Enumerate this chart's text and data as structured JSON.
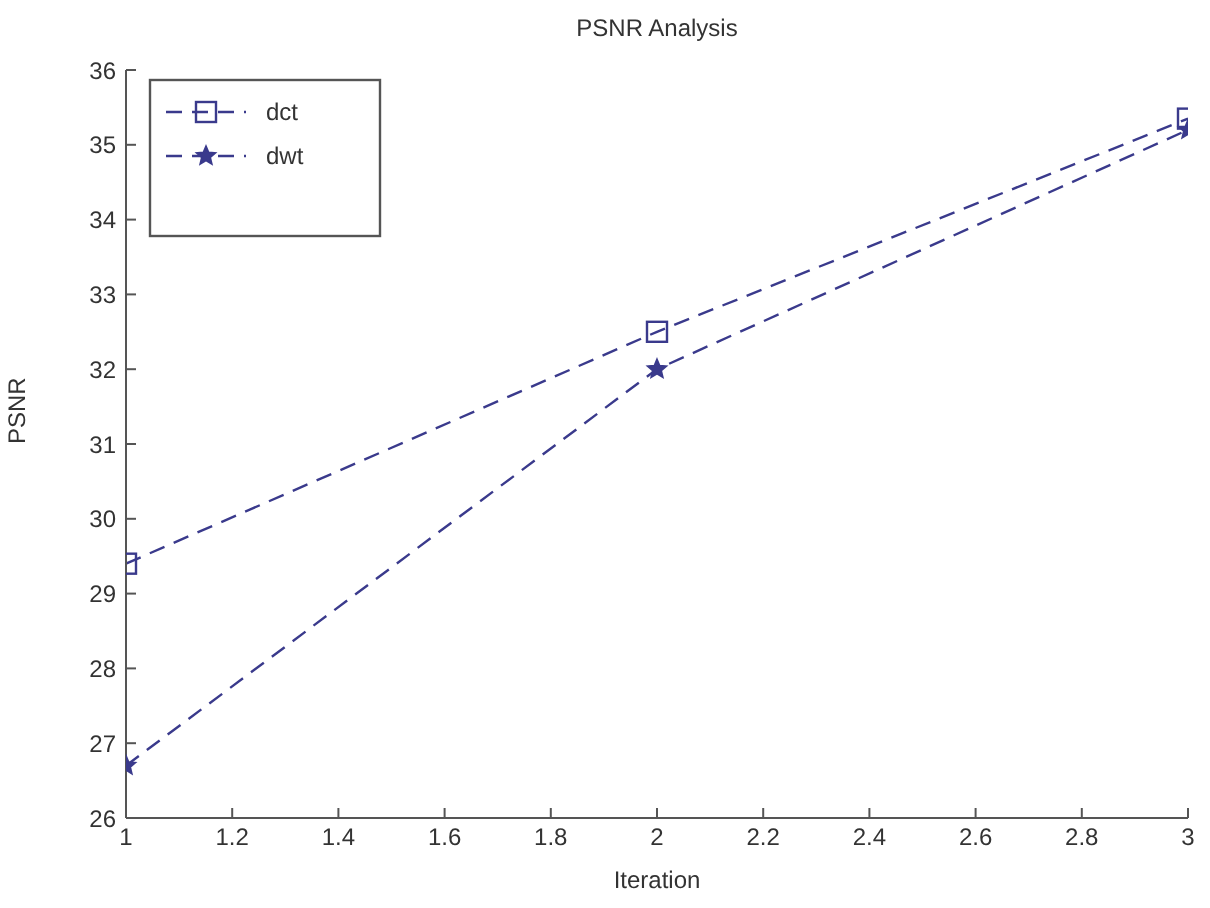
{
  "chart_data": {
    "type": "line",
    "title": "PSNR Analysis",
    "xlabel": "Iteration",
    "ylabel": "PSNR",
    "x": [
      1,
      2,
      3
    ],
    "series": [
      {
        "name": "dct",
        "color": "#3a3a8c",
        "values": [
          29.4,
          32.5,
          35.35
        ],
        "marker": "square",
        "line_style": "dashed"
      },
      {
        "name": "dwt",
        "color": "#3a3a8c",
        "values": [
          26.7,
          32.0,
          35.2
        ],
        "marker": "star",
        "line_style": "dashed"
      }
    ],
    "xlim": [
      1,
      3
    ],
    "xticks": [
      1,
      1.2,
      1.4,
      1.6,
      1.8,
      2,
      2.2,
      2.4,
      2.6,
      2.8,
      3
    ],
    "ylim": [
      26,
      36
    ],
    "yticks": [
      26,
      27,
      28,
      29,
      30,
      31,
      32,
      33,
      34,
      35,
      36
    ],
    "grid": false,
    "legend": "top left"
  }
}
